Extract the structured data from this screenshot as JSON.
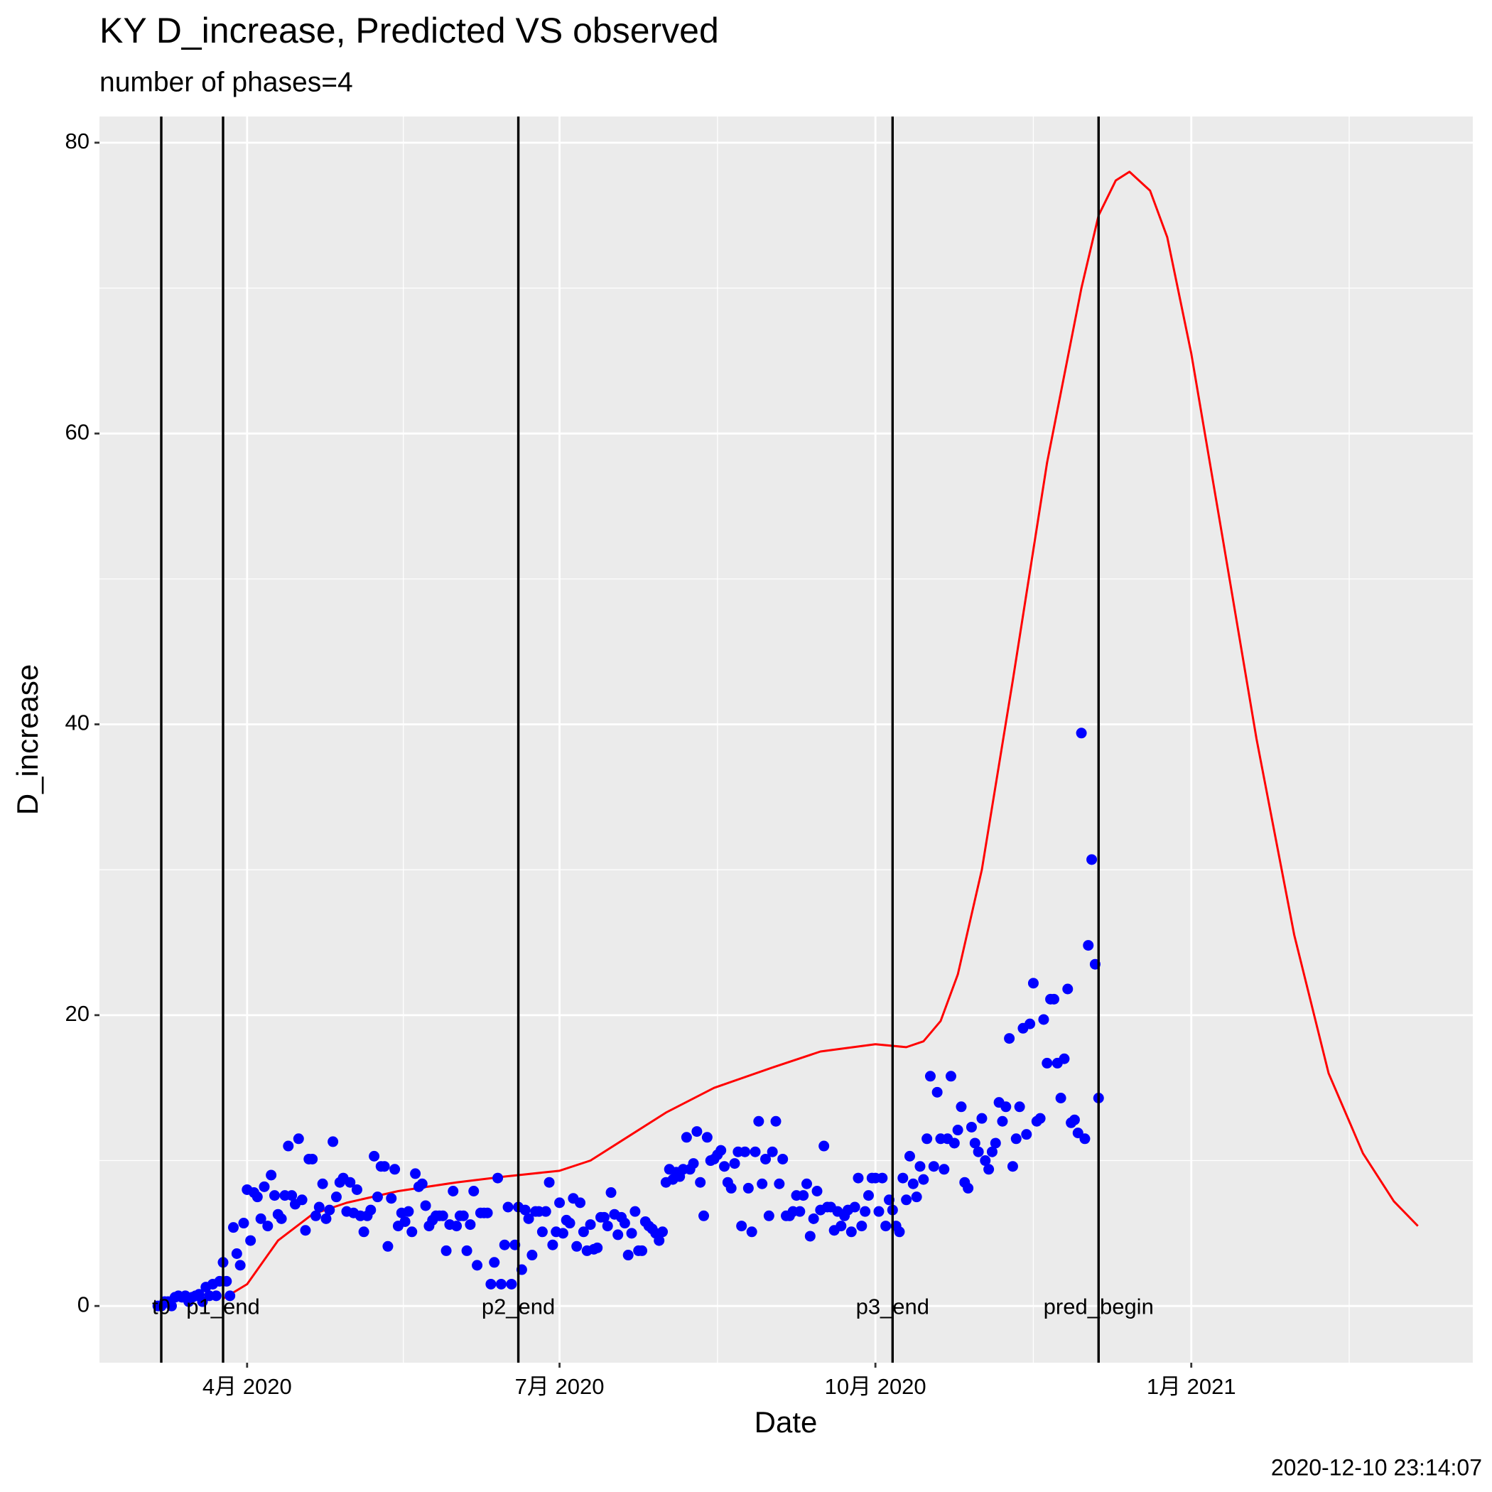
{
  "chart_data": {
    "type": "scatter",
    "title": "KY D_increase, Predicted VS observed",
    "subtitle": "number of phases=4",
    "x_label": "Date",
    "y_label": "D_increase",
    "caption": "2020-12-10 23:14:07",
    "xlim": [
      "2020-02-18",
      "2021-03-24"
    ],
    "xticks": [
      {
        "value": "2020-04-01",
        "label": "4月 2020"
      },
      {
        "value": "2020-07-01",
        "label": "7月 2020"
      },
      {
        "value": "2020-10-01",
        "label": "10月 2020"
      },
      {
        "value": "2021-01-01",
        "label": "1月 2021"
      }
    ],
    "ylim": [
      -3.9,
      81.8
    ],
    "yticks": [
      0,
      20,
      40,
      60,
      80
    ],
    "grid": true,
    "vlines": [
      {
        "x": "2020-03-07",
        "label": "t0"
      },
      {
        "x": "2020-03-25",
        "label": "p1_end"
      },
      {
        "x": "2020-06-19",
        "label": "p2_end"
      },
      {
        "x": "2020-10-06",
        "label": "p3_end"
      },
      {
        "x": "2020-12-05",
        "label": "pred_begin"
      }
    ],
    "series": [
      {
        "kind": "points",
        "color": "#0000ff",
        "x": [
          "2020-03-06",
          "2020-03-07",
          "2020-03-08",
          "2020-03-09",
          "2020-03-10",
          "2020-03-11",
          "2020-03-12",
          "2020-03-13",
          "2020-03-14",
          "2020-03-15",
          "2020-03-16",
          "2020-03-17",
          "2020-03-18",
          "2020-03-19",
          "2020-03-20",
          "2020-03-21",
          "2020-03-22",
          "2020-03-23",
          "2020-03-24",
          "2020-03-25",
          "2020-03-26",
          "2020-03-27",
          "2020-03-28",
          "2020-03-29",
          "2020-03-30",
          "2020-03-31",
          "2020-04-01",
          "2020-04-02",
          "2020-04-03",
          "2020-04-04",
          "2020-04-05",
          "2020-04-06",
          "2020-04-07",
          "2020-04-08",
          "2020-04-09",
          "2020-04-10",
          "2020-04-11",
          "2020-04-12",
          "2020-04-13",
          "2020-04-14",
          "2020-04-15",
          "2020-04-16",
          "2020-04-17",
          "2020-04-18",
          "2020-04-19",
          "2020-04-20",
          "2020-04-21",
          "2020-04-22",
          "2020-04-23",
          "2020-04-24",
          "2020-04-25",
          "2020-04-26",
          "2020-04-27",
          "2020-04-28",
          "2020-04-29",
          "2020-04-30",
          "2020-05-01",
          "2020-05-02",
          "2020-05-03",
          "2020-05-04",
          "2020-05-05",
          "2020-05-06",
          "2020-05-07",
          "2020-05-08",
          "2020-05-09",
          "2020-05-10",
          "2020-05-11",
          "2020-05-12",
          "2020-05-13",
          "2020-05-14",
          "2020-05-15",
          "2020-05-16",
          "2020-05-17",
          "2020-05-18",
          "2020-05-19",
          "2020-05-20",
          "2020-05-21",
          "2020-05-22",
          "2020-05-23",
          "2020-05-24",
          "2020-05-25",
          "2020-05-26",
          "2020-05-27",
          "2020-05-28",
          "2020-05-29",
          "2020-05-30",
          "2020-05-31",
          "2020-06-01",
          "2020-06-02",
          "2020-06-03",
          "2020-06-04",
          "2020-06-05",
          "2020-06-06",
          "2020-06-07",
          "2020-06-08",
          "2020-06-09",
          "2020-06-10",
          "2020-06-11",
          "2020-06-12",
          "2020-06-13",
          "2020-06-14",
          "2020-06-15",
          "2020-06-16",
          "2020-06-17",
          "2020-06-18",
          "2020-06-19",
          "2020-06-20",
          "2020-06-21",
          "2020-06-22",
          "2020-06-23",
          "2020-06-24",
          "2020-06-25",
          "2020-06-26",
          "2020-06-27",
          "2020-06-28",
          "2020-06-29",
          "2020-06-30",
          "2020-07-01",
          "2020-07-02",
          "2020-07-03",
          "2020-07-04",
          "2020-07-05",
          "2020-07-06",
          "2020-07-07",
          "2020-07-08",
          "2020-07-09",
          "2020-07-10",
          "2020-07-11",
          "2020-07-12",
          "2020-07-13",
          "2020-07-14",
          "2020-07-15",
          "2020-07-16",
          "2020-07-17",
          "2020-07-18",
          "2020-07-19",
          "2020-07-20",
          "2020-07-21",
          "2020-07-22",
          "2020-07-23",
          "2020-07-24",
          "2020-07-25",
          "2020-07-26",
          "2020-07-27",
          "2020-07-28",
          "2020-07-29",
          "2020-07-30",
          "2020-07-31",
          "2020-08-01",
          "2020-08-02",
          "2020-08-03",
          "2020-08-04",
          "2020-08-05",
          "2020-08-06",
          "2020-08-07",
          "2020-08-08",
          "2020-08-09",
          "2020-08-10",
          "2020-08-11",
          "2020-08-12",
          "2020-08-13",
          "2020-08-14",
          "2020-08-15",
          "2020-08-16",
          "2020-08-17",
          "2020-08-18",
          "2020-08-19",
          "2020-08-20",
          "2020-08-21",
          "2020-08-22",
          "2020-08-23",
          "2020-08-24",
          "2020-08-25",
          "2020-08-26",
          "2020-08-27",
          "2020-08-28",
          "2020-08-29",
          "2020-08-30",
          "2020-08-31",
          "2020-09-01",
          "2020-09-02",
          "2020-09-03",
          "2020-09-04",
          "2020-09-05",
          "2020-09-06",
          "2020-09-07",
          "2020-09-08",
          "2020-09-09",
          "2020-09-10",
          "2020-09-11",
          "2020-09-12",
          "2020-09-13",
          "2020-09-14",
          "2020-09-15",
          "2020-09-16",
          "2020-09-17",
          "2020-09-18",
          "2020-09-19",
          "2020-09-20",
          "2020-09-21",
          "2020-09-22",
          "2020-09-23",
          "2020-09-24",
          "2020-09-25",
          "2020-09-26",
          "2020-09-27",
          "2020-09-28",
          "2020-09-29",
          "2020-09-30",
          "2020-10-01",
          "2020-10-02",
          "2020-10-03",
          "2020-10-04",
          "2020-10-05",
          "2020-10-06",
          "2020-10-07",
          "2020-10-08",
          "2020-10-09",
          "2020-10-10",
          "2020-10-11",
          "2020-10-12",
          "2020-10-13",
          "2020-10-14",
          "2020-10-15",
          "2020-10-16",
          "2020-10-17",
          "2020-10-18",
          "2020-10-19",
          "2020-10-20",
          "2020-10-21",
          "2020-10-22",
          "2020-10-23",
          "2020-10-24",
          "2020-10-25",
          "2020-10-26",
          "2020-10-27",
          "2020-10-28",
          "2020-10-29",
          "2020-10-30",
          "2020-10-31",
          "2020-11-01",
          "2020-11-02",
          "2020-11-03",
          "2020-11-04",
          "2020-11-05",
          "2020-11-06",
          "2020-11-07",
          "2020-11-08",
          "2020-11-09",
          "2020-11-10",
          "2020-11-11",
          "2020-11-12",
          "2020-11-13",
          "2020-11-14",
          "2020-11-15",
          "2020-11-16",
          "2020-11-17",
          "2020-11-18",
          "2020-11-19",
          "2020-11-20",
          "2020-11-21",
          "2020-11-22",
          "2020-11-23",
          "2020-11-24",
          "2020-11-25",
          "2020-11-26",
          "2020-11-27",
          "2020-11-28",
          "2020-11-29",
          "2020-11-30",
          "2020-12-01",
          "2020-12-02",
          "2020-12-03",
          "2020-12-04",
          "2020-12-05"
        ],
        "values": [
          0,
          0,
          0.3,
          0.3,
          0,
          0.6,
          0.7,
          0.6,
          0.7,
          0.3,
          0.6,
          0.7,
          0.8,
          0.3,
          1.3,
          0.7,
          1.5,
          0.7,
          1.7,
          3.0,
          1.7,
          0.7,
          5.4,
          3.6,
          2.8,
          5.7,
          8.0,
          4.5,
          7.8,
          7.5,
          6.0,
          8.2,
          5.5,
          9.0,
          7.6,
          6.3,
          6.0,
          7.6,
          11.0,
          7.6,
          7.0,
          11.5,
          7.3,
          5.2,
          10.1,
          10.1,
          6.2,
          6.8,
          8.4,
          6.0,
          6.6,
          11.3,
          7.5,
          8.5,
          8.8,
          6.5,
          8.5,
          6.4,
          8.0,
          6.2,
          5.1,
          6.2,
          6.6,
          10.3,
          7.5,
          9.6,
          9.6,
          4.1,
          7.4,
          9.4,
          5.5,
          6.4,
          5.8,
          6.5,
          5.1,
          9.1,
          8.2,
          8.4,
          6.9,
          5.5,
          5.9,
          6.2,
          6.2,
          6.2,
          3.8,
          5.6,
          7.9,
          5.5,
          6.2,
          6.2,
          3.8,
          5.6,
          7.9,
          2.8,
          6.4,
          6.4,
          6.4,
          1.5,
          3.0,
          8.8,
          1.5,
          4.2,
          6.8,
          1.5,
          4.2,
          6.8,
          2.5,
          6.6,
          6.0,
          3.5,
          6.5,
          6.5,
          5.1,
          6.5,
          8.5,
          4.2,
          5.1,
          7.1,
          5.0,
          5.9,
          5.7,
          7.4,
          4.1,
          7.1,
          5.1,
          3.8,
          5.6,
          3.9,
          4.0,
          6.1,
          6.1,
          5.5,
          7.8,
          6.3,
          4.9,
          6.1,
          5.7,
          3.5,
          5.0,
          6.5,
          3.8,
          3.8,
          5.8,
          5.5,
          5.3,
          5.0,
          4.5,
          5.1,
          8.5,
          9.4,
          8.7,
          9.2,
          8.9,
          9.4,
          11.6,
          9.4,
          9.8,
          12.0,
          8.5,
          6.2,
          11.6,
          10.0,
          10.1,
          10.4,
          10.7,
          9.6,
          8.5,
          8.1,
          9.8,
          10.6,
          5.5,
          10.6,
          8.1,
          5.1,
          10.6,
          12.7,
          8.4,
          10.1,
          6.2,
          10.6,
          12.7,
          8.4,
          10.1,
          6.2,
          6.2,
          6.5,
          7.6,
          6.5,
          7.6,
          8.4,
          4.8,
          6.0,
          7.9,
          6.6,
          11.0,
          6.8,
          6.8,
          5.2,
          6.5,
          5.5,
          6.2,
          6.6,
          5.1,
          6.8,
          8.8,
          5.5,
          6.5,
          7.6,
          8.8,
          8.8,
          6.5,
          8.8,
          5.5,
          7.3,
          6.6,
          5.5,
          5.1,
          8.8,
          7.3,
          10.3,
          8.4,
          7.5,
          9.6,
          8.7,
          11.5,
          15.8,
          9.6,
          14.7,
          11.5,
          9.4,
          11.5,
          15.8,
          11.2,
          12.1,
          13.7,
          8.5,
          8.1,
          12.3,
          11.2,
          10.6,
          12.9,
          10.0,
          9.4,
          10.6,
          11.2,
          14.0,
          12.7,
          13.7,
          18.4,
          9.6,
          11.5,
          13.7,
          19.1,
          11.8,
          19.4,
          22.2,
          12.7,
          12.9,
          19.7,
          16.7,
          21.1,
          21.1,
          16.7,
          14.3,
          17.0,
          21.8,
          12.6,
          12.8,
          11.9,
          39.4,
          11.5,
          24.8,
          30.7,
          23.5,
          14.3
        ]
      },
      {
        "kind": "line",
        "color": "#ff0000",
        "x": [
          "2020-03-25",
          "2020-04-01",
          "2020-04-10",
          "2020-04-20",
          "2020-04-30",
          "2020-05-15",
          "2020-06-01",
          "2020-06-15",
          "2020-07-01",
          "2020-07-10",
          "2020-07-20",
          "2020-08-01",
          "2020-08-15",
          "2020-09-01",
          "2020-09-15",
          "2020-10-01",
          "2020-10-10",
          "2020-10-15",
          "2020-10-20",
          "2020-10-25",
          "2020-11-01",
          "2020-11-10",
          "2020-11-20",
          "2020-11-30",
          "2020-12-05",
          "2020-12-10",
          "2020-12-14",
          "2020-12-20",
          "2020-12-25",
          "2021-01-01",
          "2021-01-10",
          "2021-01-20",
          "2021-01-31",
          "2021-02-10",
          "2021-02-20",
          "2021-03-01",
          "2021-03-08"
        ],
        "values": [
          0.5,
          1.5,
          4.5,
          6.3,
          7.1,
          7.9,
          8.5,
          8.9,
          9.3,
          10.0,
          11.5,
          13.3,
          15.0,
          16.4,
          17.5,
          18.0,
          17.8,
          18.2,
          19.6,
          22.8,
          30.0,
          43.0,
          58.0,
          70.0,
          75.0,
          77.4,
          78.0,
          76.7,
          73.5,
          65.5,
          53.0,
          39.0,
          25.5,
          16.0,
          10.5,
          7.2,
          5.5
        ]
      }
    ]
  }
}
